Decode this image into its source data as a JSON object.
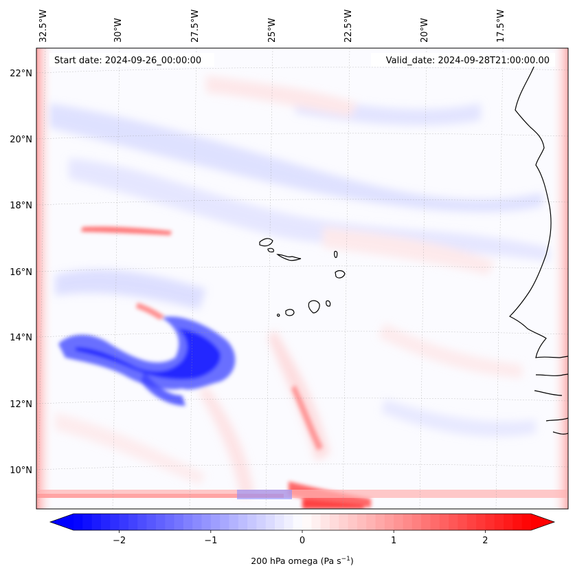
{
  "map": {
    "start_date": "Start date: 2024-09-26_00:00:00",
    "valid_date": "Valid_date: 2024-09-28T21:00:00.00",
    "lon_labels": [
      "32.5°W",
      "30°W",
      "27.5°W",
      "25°W",
      "22.5°W",
      "20°W",
      "17.5°W"
    ],
    "lat_labels": [
      "22°N",
      "20°N",
      "18°N",
      "16°N",
      "14°N",
      "12°N",
      "10°N"
    ],
    "gridlines": true,
    "colormap": "bwr",
    "colors": {
      "negative": "#0000ff",
      "zero": "#ffffff",
      "positive": "#ff0000",
      "coast": "#000000"
    }
  },
  "colorbar": {
    "ticks": [
      "−2",
      "−1",
      "0",
      "1",
      "2"
    ],
    "tick_values": [
      -2,
      -1,
      0,
      1,
      2
    ],
    "range": [
      -2.5,
      2.5
    ],
    "extend": "both",
    "label_prefix": "200 hPa omega (Pa s",
    "label_exponent": "−1",
    "label_suffix": ")"
  }
}
